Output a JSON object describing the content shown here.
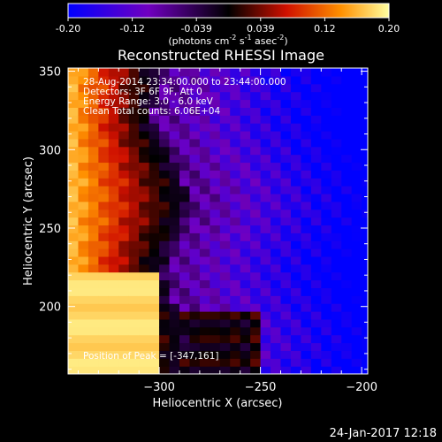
{
  "chart_data": {
    "type": "heatmap",
    "title": "Reconstructed RHESSI Image",
    "xlabel": "Heliocentric X (arcsec)",
    "ylabel": "Heliocentric Y (arcsec)",
    "xlim": [
      -345,
      -197
    ],
    "ylim": [
      157,
      352
    ],
    "xticks": [
      -300,
      -250,
      -200
    ],
    "yticks": [
      200,
      250,
      300,
      350
    ],
    "colorbar": {
      "ticks": [
        "-0.20",
        "-0.12",
        "-0.039",
        "0.039",
        "0.12",
        "0.20"
      ],
      "vmin": -0.2,
      "vmax": 0.2,
      "unit_base": "(photons cm",
      "unit_exp1": "-2",
      "unit_mid": " s",
      "unit_exp2": "-1",
      "unit_mid2": " asec",
      "unit_exp3": "-2",
      "unit_end": ")"
    },
    "annotations": [
      "28-Aug-2014 23:34:00.000 to 23:44:00.000",
      "Detectors: 3F 6F 9F, Att 0",
      "Energy Range: 3.0 - 6.0 keV",
      "Clean      Total counts: 6.06E+04"
    ],
    "peak_label": "Position of Peak = [-347,161]",
    "peak": [
      -347,
      161
    ],
    "colors": {
      "low": "#0000ff",
      "mid_low": "#7000b0",
      "mid": "#000000",
      "mid_high": "#d01000",
      "high": "#ffff80"
    }
  },
  "footer": {
    "date": "24-Jan-2017 12:18"
  }
}
